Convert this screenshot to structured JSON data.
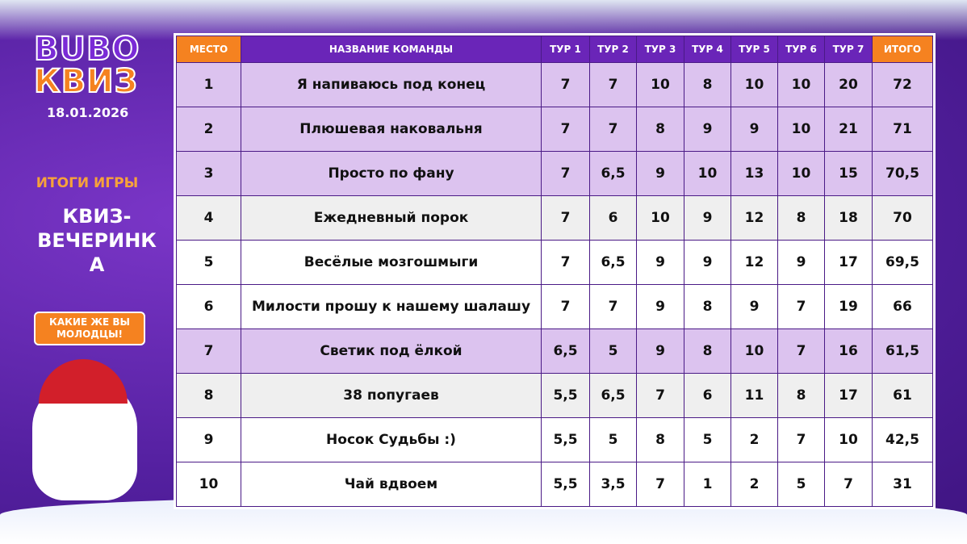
{
  "brand": {
    "logo_top": "BUBO",
    "logo_bottom": "КВИЗ",
    "date": "18.01.2026"
  },
  "sidebar": {
    "subtitle": "ИТОГИ ИГРЫ",
    "title": "КВИЗ-ВЕЧЕРИНКА",
    "bubble": "КАКИЕ ЖЕ ВЫ МОЛОДЦЫ!"
  },
  "table": {
    "header": [
      "МЕСТО",
      "НАЗВАНИЕ КОМАНДЫ",
      "ТУР 1",
      "ТУР 2",
      "ТУР 3",
      "ТУР 4",
      "ТУР 5",
      "ТУР 6",
      "ТУР 7",
      "ИТОГО"
    ],
    "rows": [
      [
        "1",
        "Я напиваюсь под конец",
        "7",
        "7",
        "10",
        "8",
        "10",
        "10",
        "20",
        "72"
      ],
      [
        "2",
        "Плюшевая наковальня",
        "7",
        "7",
        "8",
        "9",
        "9",
        "10",
        "21",
        "71"
      ],
      [
        "3",
        "Просто по фану",
        "7",
        "6,5",
        "9",
        "10",
        "13",
        "10",
        "15",
        "70,5"
      ],
      [
        "4",
        "Ежедневный порок",
        "7",
        "6",
        "10",
        "9",
        "12",
        "8",
        "18",
        "70"
      ],
      [
        "5",
        "Весёлые мозгошмыги",
        "7",
        "6,5",
        "9",
        "9",
        "12",
        "9",
        "17",
        "69,5"
      ],
      [
        "6",
        "Милости прошу к нашему шалашу",
        "7",
        "7",
        "9",
        "8",
        "9",
        "7",
        "19",
        "66"
      ],
      [
        "7",
        "Светик под ёлкой",
        "6,5",
        "5",
        "9",
        "8",
        "10",
        "7",
        "16",
        "61,5"
      ],
      [
        "8",
        "38 попугаев",
        "5,5",
        "6,5",
        "7",
        "6",
        "11",
        "8",
        "17",
        "61"
      ],
      [
        "9",
        "Носок Судьбы :)",
        "5,5",
        "5",
        "8",
        "5",
        "2",
        "7",
        "10",
        "42,5"
      ],
      [
        "10",
        "Чай вдвоем",
        "5,5",
        "3,5",
        "7",
        "1",
        "2",
        "5",
        "7",
        "31"
      ]
    ]
  }
}
